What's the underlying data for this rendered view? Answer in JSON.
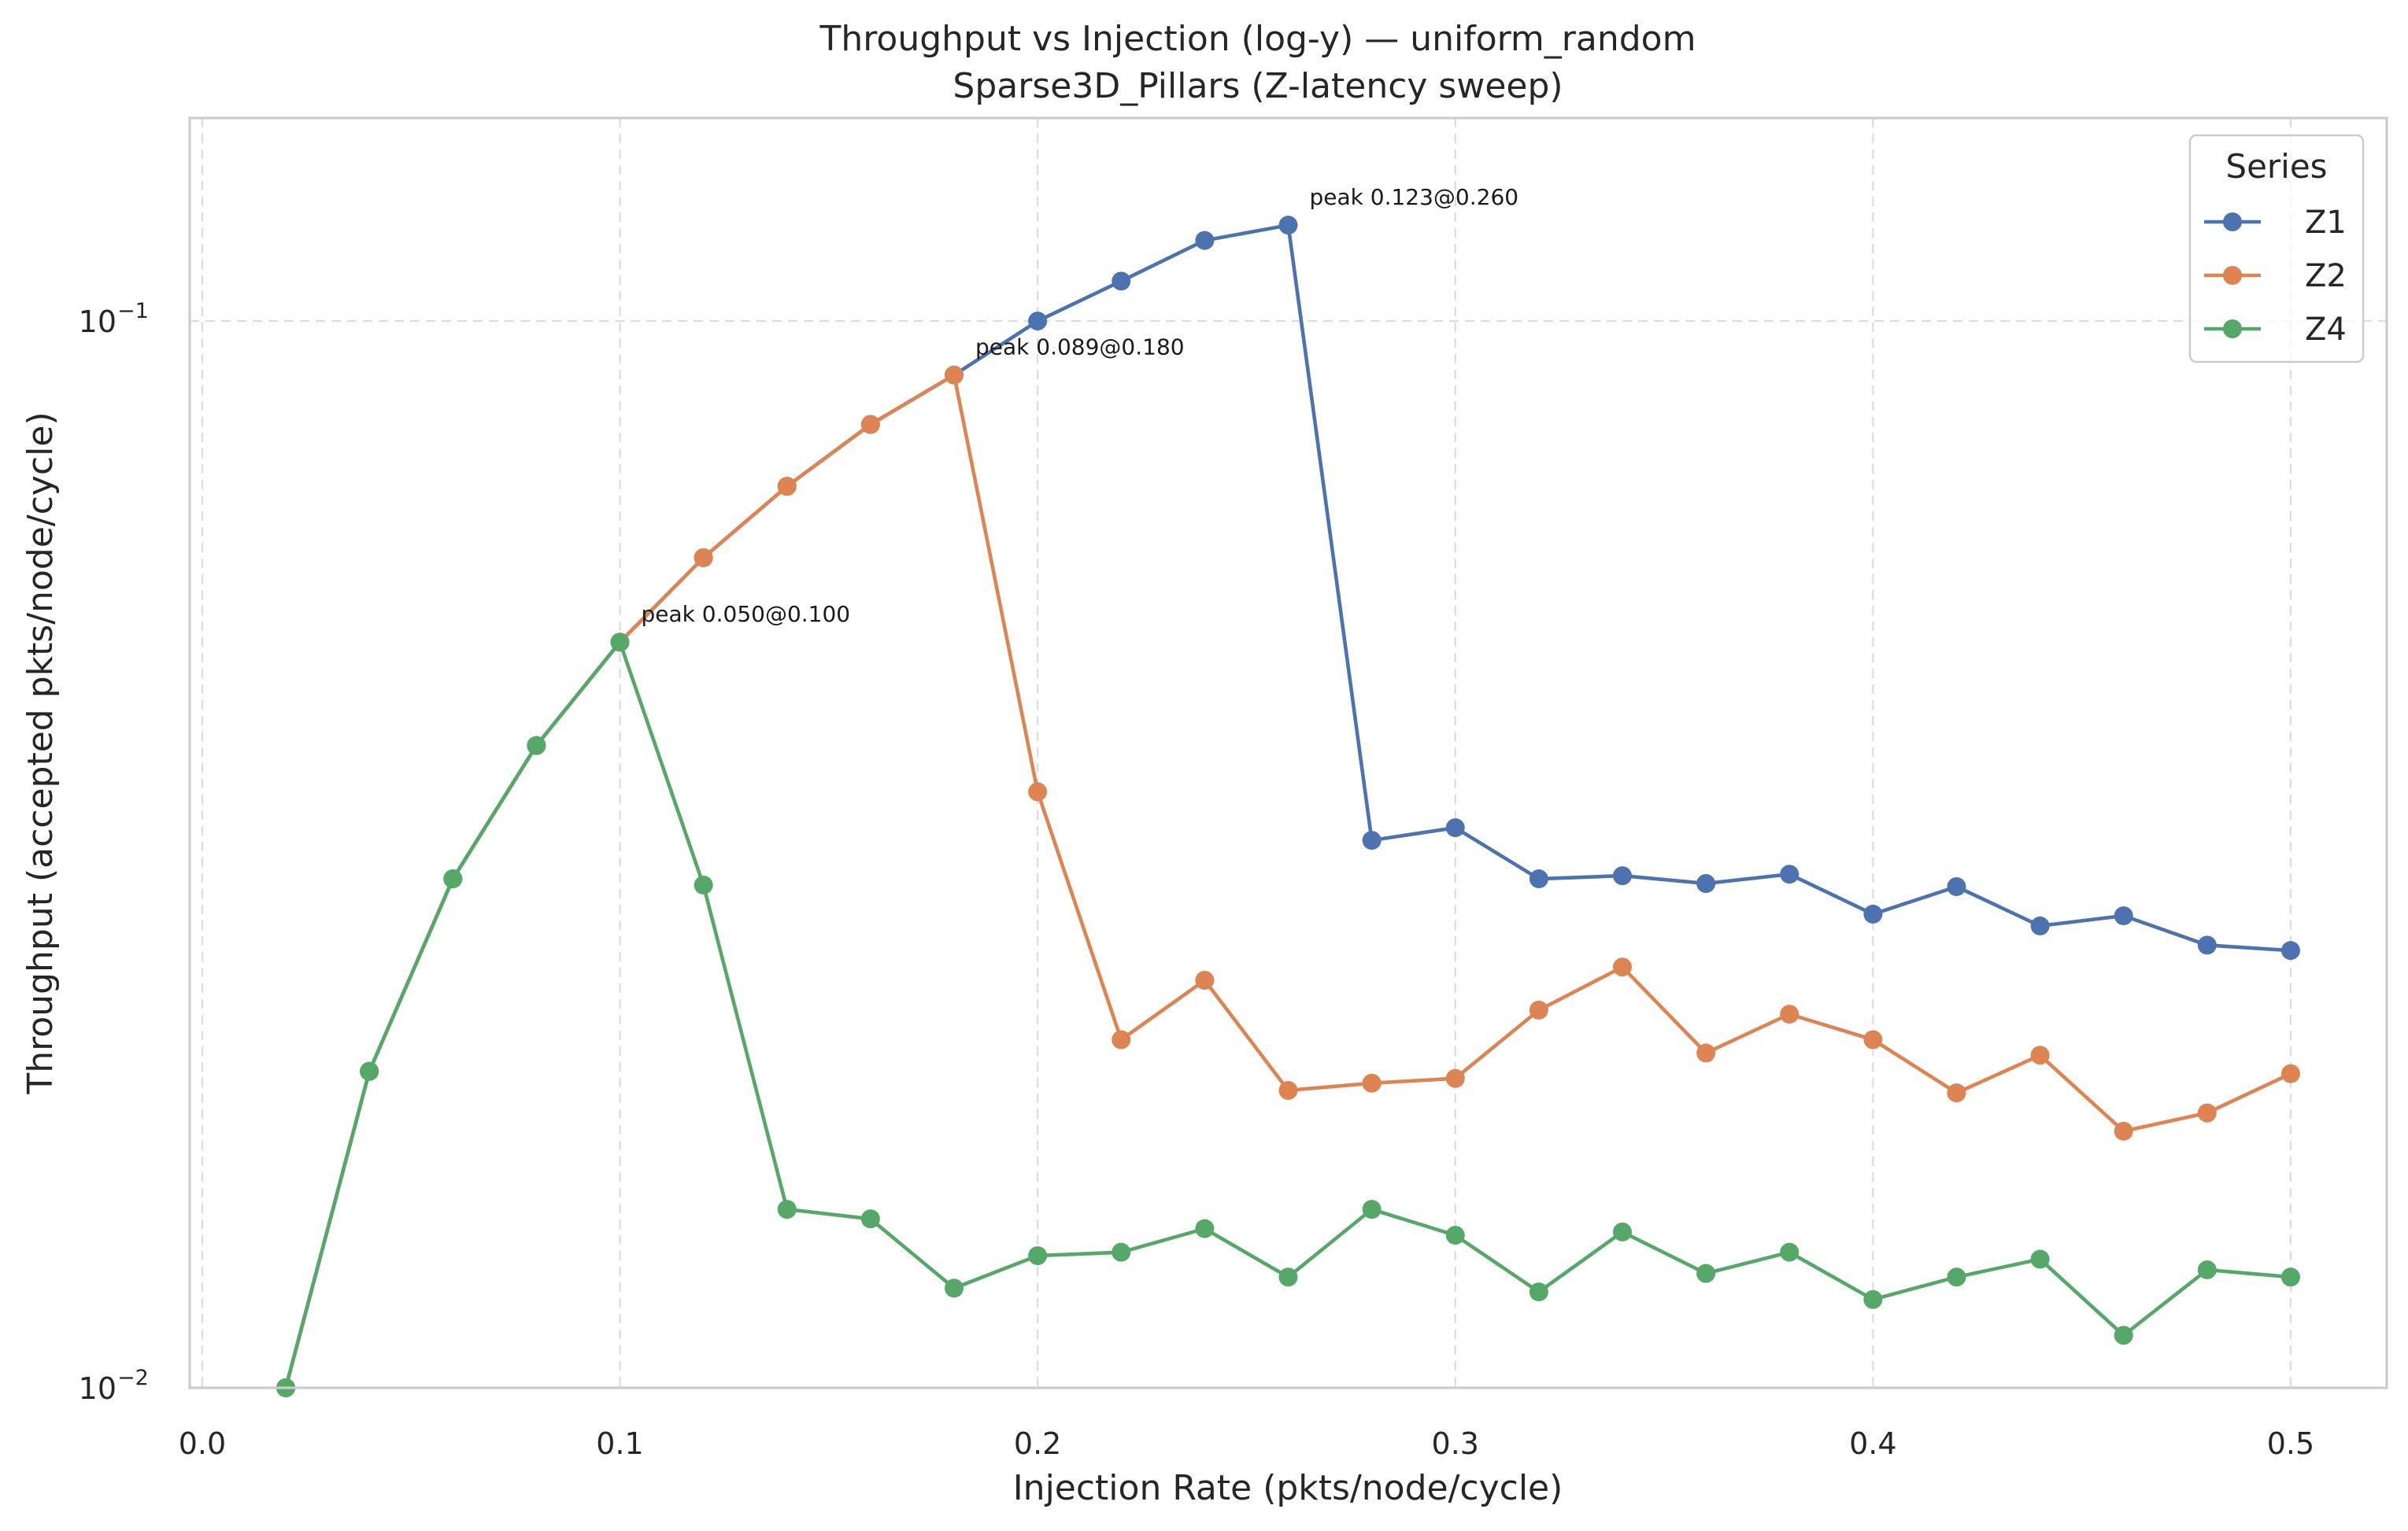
{
  "chart_data": {
    "type": "line",
    "title": "Throughput vs Injection (log-y) — uniform_random",
    "subtitle": "Sparse3D_Pillars (Z-latency sweep)",
    "xlabel": "Injection Rate (pkts/node/cycle)",
    "ylabel": "Throughput (accepted pkts/node/cycle)",
    "xlim": [
      -0.003,
      0.523
    ],
    "ylim": [
      0.01,
      0.155
    ],
    "yscale": "log",
    "grid": true,
    "x_ticks": [
      0.0,
      0.1,
      0.2,
      0.3,
      0.4,
      0.5
    ],
    "x_tick_labels": [
      "0.0",
      "0.1",
      "0.2",
      "0.3",
      "0.4",
      "0.5"
    ],
    "y_ticks": [
      0.01,
      0.1
    ],
    "y_tick_labels": [
      {
        "base": "10",
        "exp": "−2"
      },
      {
        "base": "10",
        "exp": "−1"
      }
    ],
    "legend": {
      "title": "Series",
      "position": "top-right"
    },
    "series": [
      {
        "name": "Z1",
        "color": "#4c72b0",
        "x": [
          0.02,
          0.04,
          0.06,
          0.08,
          0.1,
          0.12,
          0.14,
          0.16,
          0.18,
          0.2,
          0.22,
          0.24,
          0.26,
          0.28,
          0.3,
          0.32,
          0.34,
          0.36,
          0.38,
          0.4,
          0.42,
          0.44,
          0.46,
          0.48,
          0.5
        ],
        "y": [
          0.01,
          0.0198,
          0.03,
          0.04,
          0.05,
          0.06,
          0.07,
          0.08,
          0.089,
          0.1,
          0.109,
          0.119,
          0.123,
          0.0326,
          0.0335,
          0.03,
          0.0302,
          0.0297,
          0.0303,
          0.0278,
          0.0295,
          0.0271,
          0.0277,
          0.026,
          0.0257
        ]
      },
      {
        "name": "Z2",
        "color": "#dd8452",
        "x": [
          0.02,
          0.04,
          0.06,
          0.08,
          0.1,
          0.12,
          0.14,
          0.16,
          0.18,
          0.2,
          0.22,
          0.24,
          0.26,
          0.28,
          0.3,
          0.32,
          0.34,
          0.36,
          0.38,
          0.4,
          0.42,
          0.44,
          0.46,
          0.48,
          0.5
        ],
        "y": [
          0.01,
          0.0198,
          0.03,
          0.04,
          0.05,
          0.06,
          0.07,
          0.08,
          0.089,
          0.0362,
          0.0212,
          0.0241,
          0.019,
          0.0193,
          0.0195,
          0.0226,
          0.0248,
          0.0206,
          0.0224,
          0.0212,
          0.0189,
          0.0205,
          0.0174,
          0.0181,
          0.0197
        ]
      },
      {
        "name": "Z4",
        "color": "#55a868",
        "x": [
          0.02,
          0.04,
          0.06,
          0.08,
          0.1,
          0.12,
          0.14,
          0.16,
          0.18,
          0.2,
          0.22,
          0.24,
          0.26,
          0.28,
          0.3,
          0.32,
          0.34,
          0.36,
          0.38,
          0.4,
          0.42,
          0.44,
          0.46,
          0.48,
          0.5
        ],
        "y": [
          0.01,
          0.0198,
          0.03,
          0.04,
          0.05,
          0.0296,
          0.0147,
          0.0144,
          0.0124,
          0.0133,
          0.0134,
          0.0141,
          0.0127,
          0.0147,
          0.0139,
          0.0123,
          0.014,
          0.0128,
          0.0134,
          0.0121,
          0.0127,
          0.0132,
          0.0112,
          0.0129,
          0.0127
        ]
      }
    ],
    "annotations": [
      {
        "text": "peak 0.123@0.260",
        "x": 0.26,
        "y": 0.123,
        "series": "Z1"
      },
      {
        "text": "peak 0.089@0.180",
        "x": 0.18,
        "y": 0.089,
        "series": "Z2"
      },
      {
        "text": "peak 0.050@0.100",
        "x": 0.1,
        "y": 0.05,
        "series": "Z4"
      }
    ]
  }
}
